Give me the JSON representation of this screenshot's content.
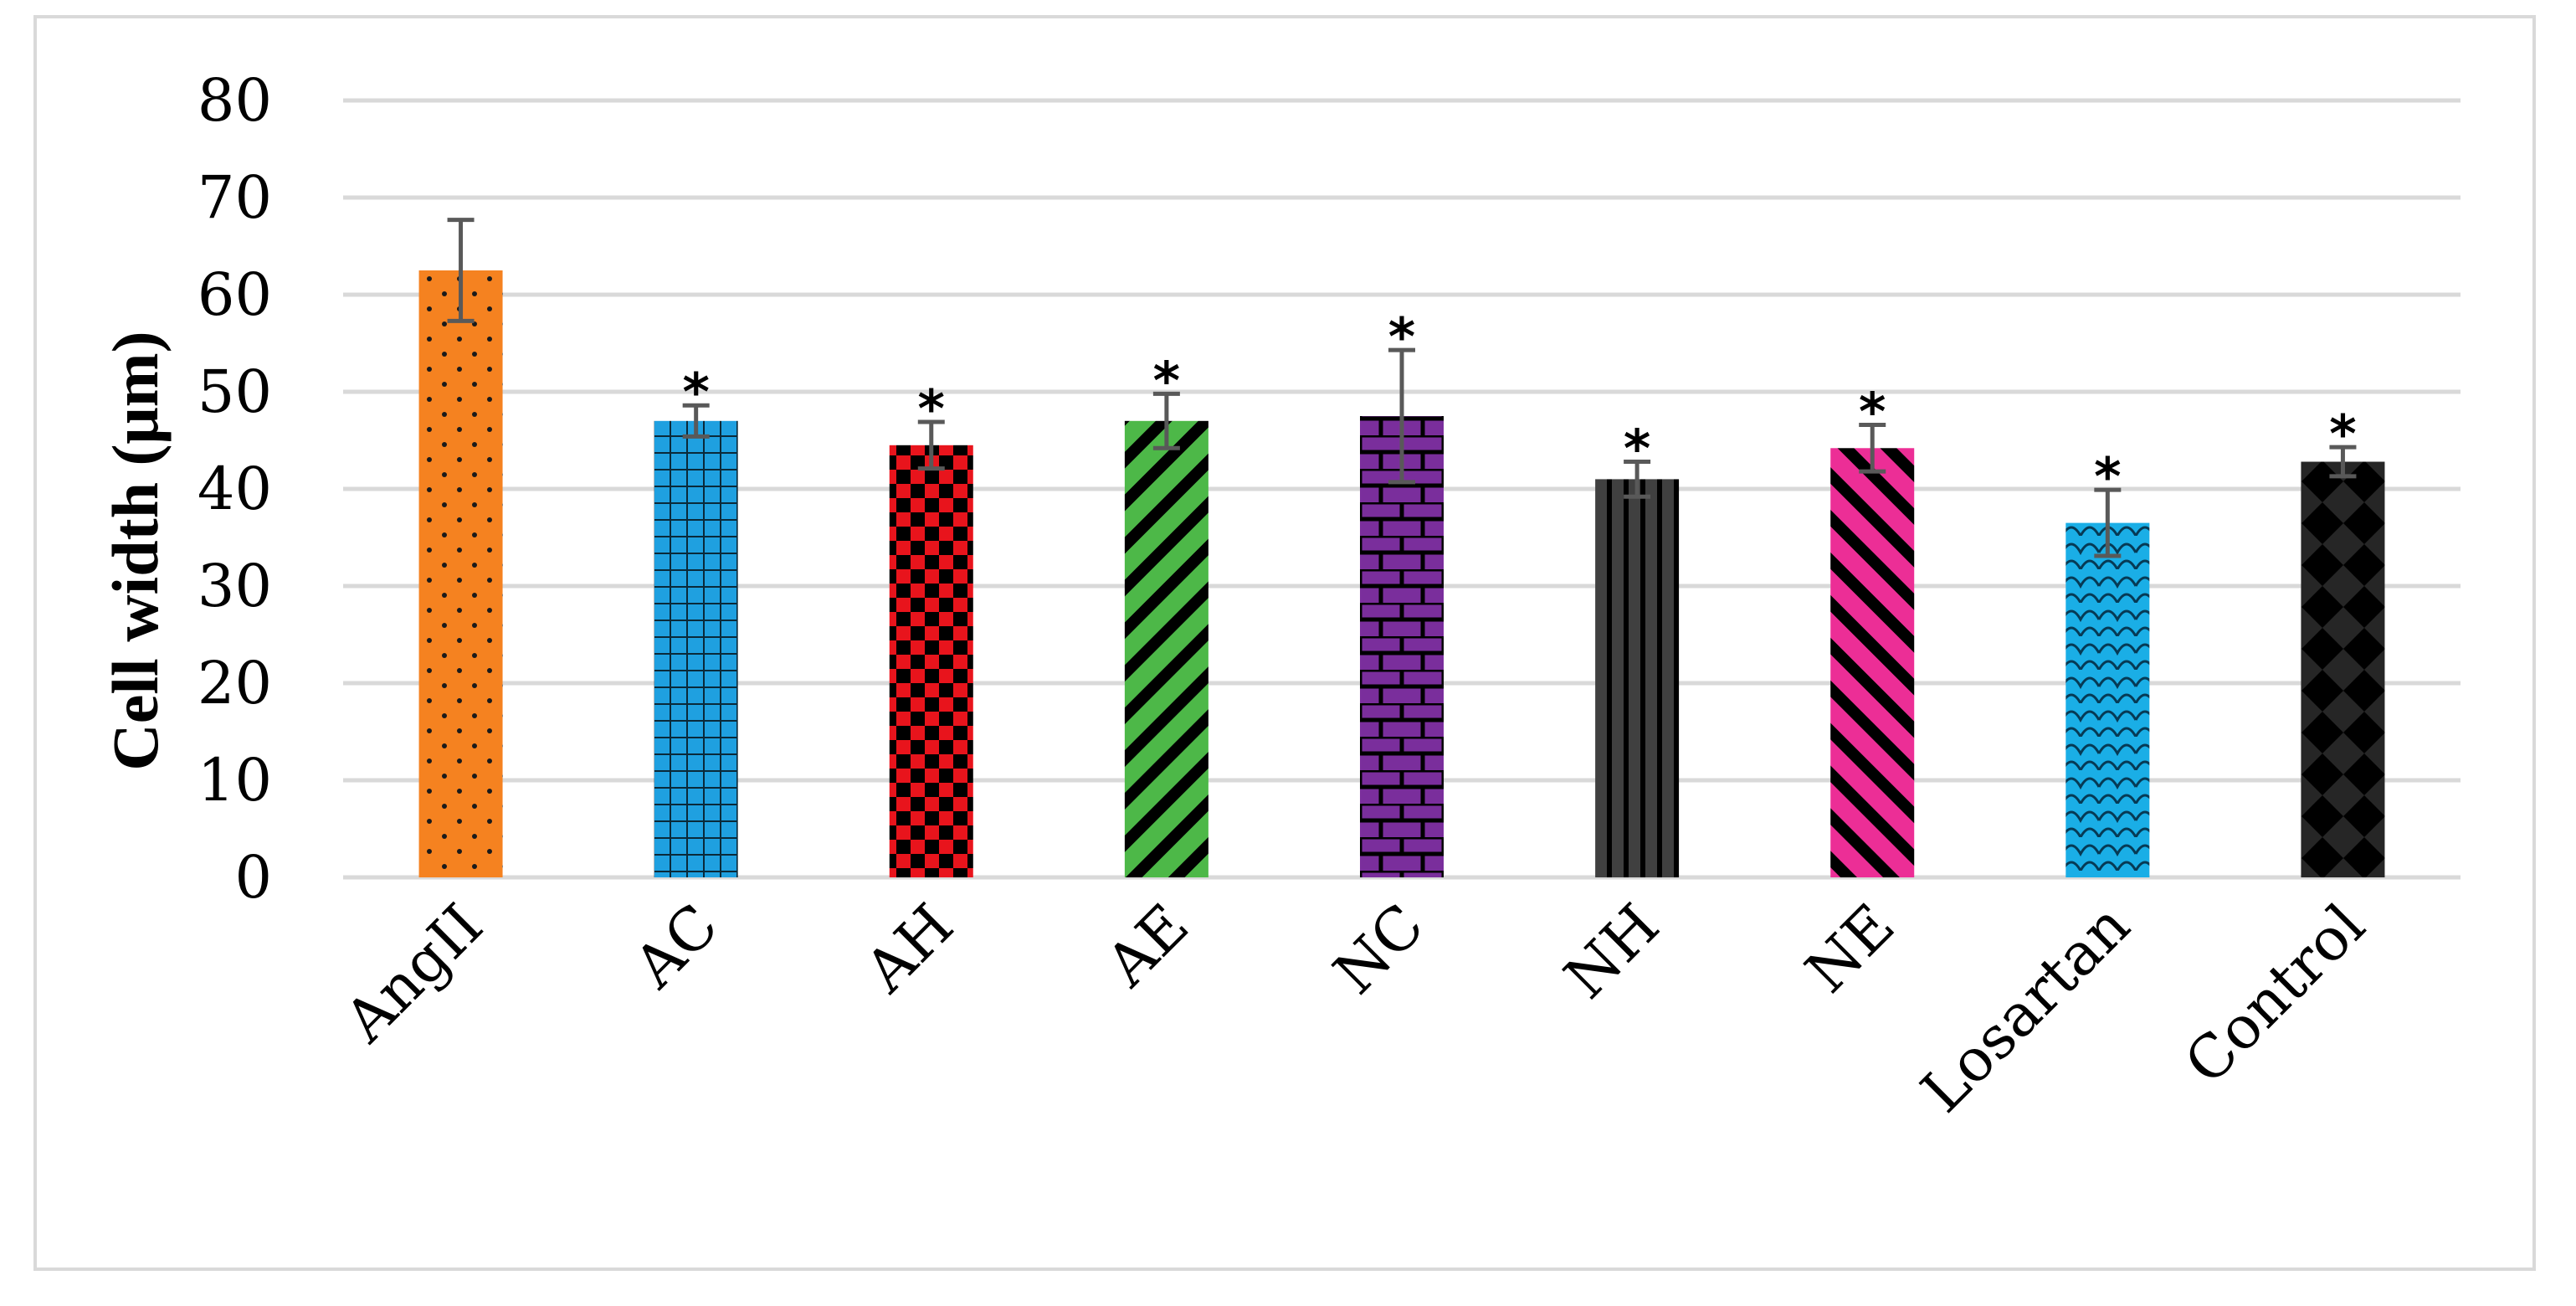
{
  "chart_data": {
    "type": "bar",
    "title": "",
    "xlabel": "",
    "ylabel": "Cell width (μm)",
    "ylim": [
      0,
      80
    ],
    "yticks": [
      0,
      10,
      20,
      30,
      40,
      50,
      60,
      70,
      80
    ],
    "grid": true,
    "legend": "none",
    "categories": [
      "AngII",
      "AC",
      "AH",
      "AE",
      "NC",
      "NH",
      "NE",
      "Losartan",
      "Control"
    ],
    "values": [
      62.5,
      47.0,
      44.5,
      47.0,
      47.5,
      41.0,
      44.2,
      36.5,
      42.8
    ],
    "errors": [
      5.2,
      1.6,
      2.4,
      2.8,
      6.8,
      1.8,
      2.4,
      3.4,
      1.5
    ],
    "annotations": [
      "",
      "*",
      "*",
      "*",
      "*",
      "*",
      "*",
      "*",
      "*"
    ],
    "colors": [
      "#f58220",
      "#1fa0e0",
      "#e8141c",
      "#4db848",
      "#7a2e9c",
      "#404040",
      "#ec2e96",
      "#1aaee6",
      "#262626"
    ],
    "patterns": [
      "dots",
      "grid",
      "checker",
      "diagonal-up",
      "brick",
      "vertical-stripes",
      "diagonal-down",
      "scales",
      "diamonds"
    ]
  }
}
